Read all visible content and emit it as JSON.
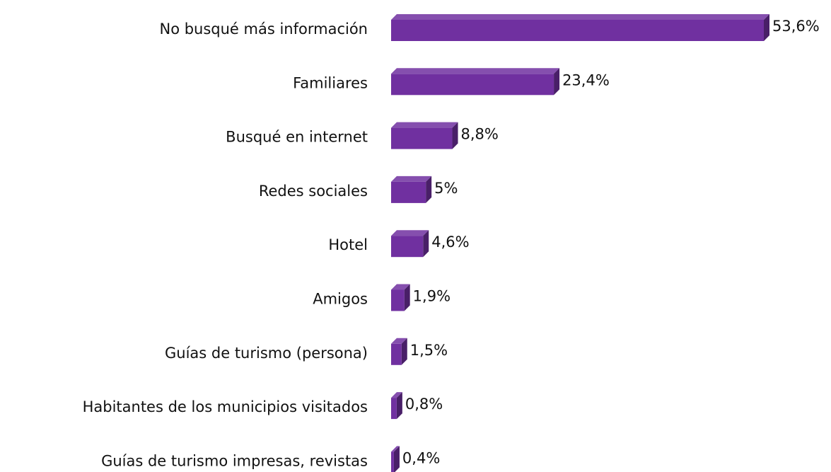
{
  "chart_data": {
    "type": "bar",
    "orientation": "horizontal",
    "categories": [
      "No busqué más información",
      "Familiares",
      "Busqué en internet",
      "Redes sociales",
      "Hotel",
      "Amigos",
      "Guías de turismo (persona)",
      "Habitantes de los municipios visitados",
      "Guías de turismo impresas, revistas"
    ],
    "values": [
      53.6,
      23.4,
      8.8,
      5,
      4.6,
      1.9,
      1.5,
      0.8,
      0.4
    ],
    "value_labels": [
      "53,6%",
      "23,4%",
      "8,8%",
      "5%",
      "4,6%",
      "1,9%",
      "1,5%",
      "0,8%",
      "0,4%"
    ],
    "color": "#7030a0"
  }
}
